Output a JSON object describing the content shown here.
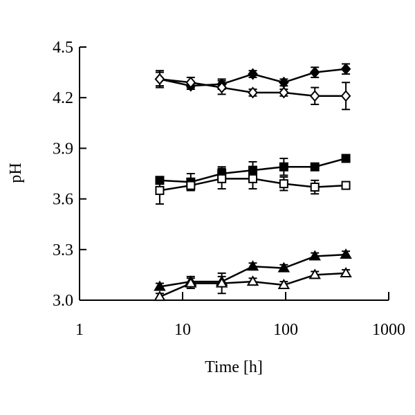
{
  "chart_data": {
    "type": "scatter",
    "xlabel": "Time [h]",
    "ylabel": "pH",
    "xscale": "log",
    "xlim": [
      1,
      1000
    ],
    "ylim": [
      3.0,
      4.5
    ],
    "x_ticks": [
      1,
      10,
      100,
      1000
    ],
    "x_tick_labels": [
      "1",
      "10",
      "100",
      "1000"
    ],
    "y_ticks": [
      3.0,
      3.3,
      3.6,
      3.9,
      4.2,
      4.5
    ],
    "y_tick_labels": [
      "3.0",
      "3.3",
      "3.6",
      "3.9",
      "4.2",
      "4.5"
    ],
    "grid": false,
    "legend": "none",
    "series": [
      {
        "marker": "diamond-filled",
        "x": [
          6,
          12,
          24,
          48,
          96,
          192,
          384
        ],
        "y": [
          4.31,
          4.27,
          4.28,
          4.34,
          4.29,
          4.35,
          4.37
        ],
        "err": [
          0.04,
          0.02,
          0.03,
          0.02,
          0.02,
          0.03,
          0.03
        ]
      },
      {
        "marker": "diamond-open",
        "x": [
          6,
          12,
          24,
          48,
          96,
          192,
          384
        ],
        "y": [
          4.31,
          4.29,
          4.26,
          4.23,
          4.23,
          4.21,
          4.21
        ],
        "err": [
          0.05,
          0.03,
          0.04,
          0.02,
          0.02,
          0.05,
          0.08
        ]
      },
      {
        "marker": "square-filled",
        "x": [
          6,
          12,
          24,
          48,
          96,
          192,
          384
        ],
        "y": [
          3.71,
          3.7,
          3.75,
          3.77,
          3.79,
          3.79,
          3.84
        ],
        "err": [
          0.02,
          0.05,
          0.04,
          0.05,
          0.05,
          0.02,
          0.02
        ]
      },
      {
        "marker": "square-open",
        "x": [
          6,
          12,
          24,
          48,
          96,
          192,
          384
        ],
        "y": [
          3.65,
          3.68,
          3.72,
          3.72,
          3.69,
          3.67,
          3.68
        ],
        "err": [
          0.08,
          0.03,
          0.06,
          0.06,
          0.04,
          0.04,
          0.02
        ]
      },
      {
        "marker": "triangle-filled",
        "x": [
          6,
          12,
          24,
          48,
          96,
          192,
          384
        ],
        "y": [
          3.08,
          3.11,
          3.11,
          3.2,
          3.19,
          3.26,
          3.27
        ],
        "err": [
          0.02,
          0.03,
          0.03,
          0.02,
          0.02,
          0.02,
          0.02
        ]
      },
      {
        "marker": "triangle-open",
        "x": [
          6,
          12,
          24,
          48,
          96,
          192,
          384
        ],
        "y": [
          3.02,
          3.1,
          3.1,
          3.11,
          3.09,
          3.15,
          3.16
        ],
        "err": [
          0.02,
          0.03,
          0.06,
          0.02,
          0.02,
          0.02,
          0.02
        ]
      }
    ]
  }
}
